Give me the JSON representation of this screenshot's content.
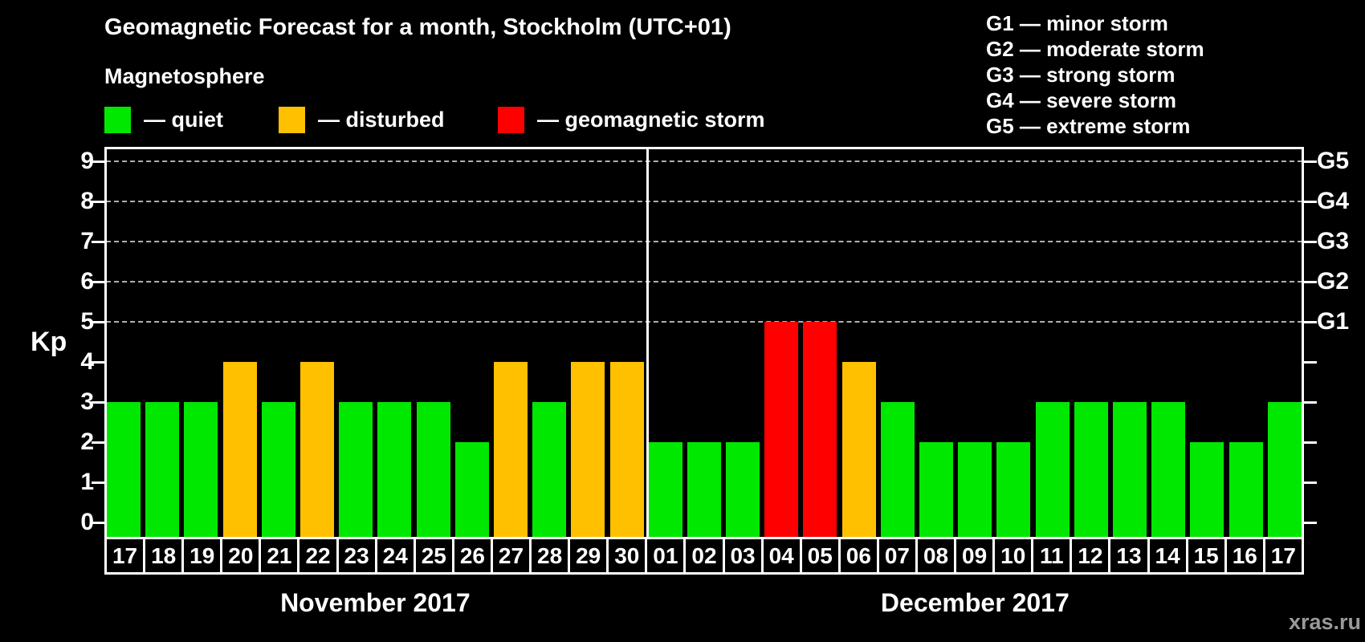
{
  "title": "Geomagnetic Forecast for a month, Stockholm (UTC+01)",
  "subtitle": "Magnetosphere",
  "legend": [
    {
      "label": "— quiet",
      "level": "quiet"
    },
    {
      "label": "— disturbed",
      "level": "disturbed"
    },
    {
      "label": "— geomagnetic storm",
      "level": "storm"
    }
  ],
  "g_scale_legend": [
    "G1 — minor storm",
    "G2 — moderate storm",
    "G3 — strong storm",
    "G4 — severe storm",
    "G5 — extreme storm"
  ],
  "watermark": "xras.ru",
  "colors": {
    "quiet": "#00e800",
    "disturbed": "#ffc000",
    "storm": "#ff0000",
    "gridline": "#b0b0b0",
    "axis": "#ffffff",
    "background": "#000000"
  },
  "chart_data": {
    "type": "bar",
    "ylabel": "Kp",
    "y_ticks": [
      "0",
      "1",
      "2",
      "3",
      "4",
      "5",
      "6",
      "7",
      "8",
      "9"
    ],
    "ylim": [
      -0.36,
      9.36
    ],
    "grid": "dashed horizontal at Kp 5-9",
    "right_axis_labels": [
      {
        "label": "G1",
        "kp": 5
      },
      {
        "label": "G2",
        "kp": 6
      },
      {
        "label": "G3",
        "kp": 7
      },
      {
        "label": "G4",
        "kp": 8
      },
      {
        "label": "G5",
        "kp": 9
      }
    ],
    "months": [
      {
        "label": "November 2017",
        "days": [
          {
            "day": "17",
            "kp": 3,
            "level": "quiet"
          },
          {
            "day": "18",
            "kp": 3,
            "level": "quiet"
          },
          {
            "day": "19",
            "kp": 3,
            "level": "quiet"
          },
          {
            "day": "20",
            "kp": 4,
            "level": "disturbed"
          },
          {
            "day": "21",
            "kp": 3,
            "level": "quiet"
          },
          {
            "day": "22",
            "kp": 4,
            "level": "disturbed"
          },
          {
            "day": "23",
            "kp": 3,
            "level": "quiet"
          },
          {
            "day": "24",
            "kp": 3,
            "level": "quiet"
          },
          {
            "day": "25",
            "kp": 3,
            "level": "quiet"
          },
          {
            "day": "26",
            "kp": 2,
            "level": "quiet"
          },
          {
            "day": "27",
            "kp": 4,
            "level": "disturbed"
          },
          {
            "day": "28",
            "kp": 3,
            "level": "quiet"
          },
          {
            "day": "29",
            "kp": 4,
            "level": "disturbed"
          },
          {
            "day": "30",
            "kp": 4,
            "level": "disturbed"
          }
        ]
      },
      {
        "label": "December 2017",
        "days": [
          {
            "day": "01",
            "kp": 2,
            "level": "quiet"
          },
          {
            "day": "02",
            "kp": 2,
            "level": "quiet"
          },
          {
            "day": "03",
            "kp": 2,
            "level": "quiet"
          },
          {
            "day": "04",
            "kp": 5,
            "level": "storm"
          },
          {
            "day": "05",
            "kp": 5,
            "level": "storm"
          },
          {
            "day": "06",
            "kp": 4,
            "level": "disturbed"
          },
          {
            "day": "07",
            "kp": 3,
            "level": "quiet"
          },
          {
            "day": "08",
            "kp": 2,
            "level": "quiet"
          },
          {
            "day": "09",
            "kp": 2,
            "level": "quiet"
          },
          {
            "day": "10",
            "kp": 2,
            "level": "quiet"
          },
          {
            "day": "11",
            "kp": 3,
            "level": "quiet"
          },
          {
            "day": "12",
            "kp": 3,
            "level": "quiet"
          },
          {
            "day": "13",
            "kp": 3,
            "level": "quiet"
          },
          {
            "day": "14",
            "kp": 3,
            "level": "quiet"
          },
          {
            "day": "15",
            "kp": 2,
            "level": "quiet"
          },
          {
            "day": "16",
            "kp": 2,
            "level": "quiet"
          },
          {
            "day": "17",
            "kp": 3,
            "level": "quiet"
          }
        ]
      }
    ]
  }
}
